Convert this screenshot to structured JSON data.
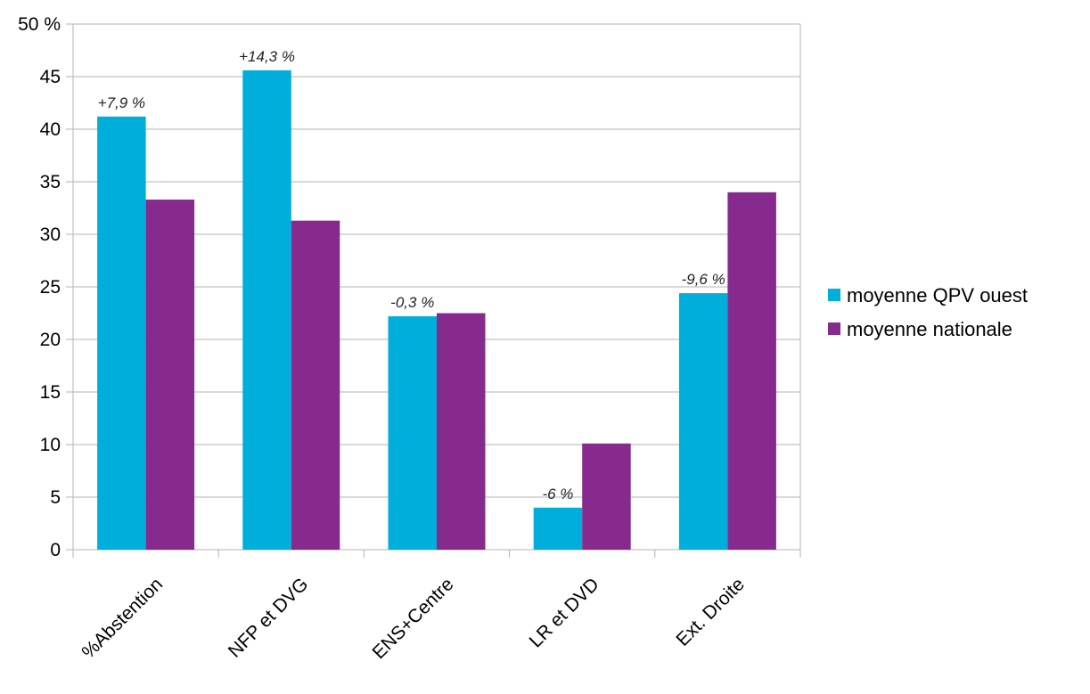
{
  "chart_data": {
    "type": "bar",
    "categories": [
      "%Abstention",
      "NFP et DVG",
      "ENS+Centre",
      "LR et DVD",
      "Ext. Droite"
    ],
    "series": [
      {
        "name": "moyenne QPV ouest",
        "color": "#00AEDB",
        "values": [
          41.2,
          45.6,
          22.2,
          4.0,
          24.4
        ]
      },
      {
        "name": "moyenne nationale",
        "color": "#862A8E",
        "values": [
          33.3,
          31.3,
          22.5,
          10.1,
          34.0
        ]
      }
    ],
    "data_labels": [
      "+7,9 %",
      "+14,3 %",
      "-0,3 %",
      "-6 %",
      "-9,6 %"
    ],
    "y_ticks": [
      "0",
      "5",
      "10",
      "15",
      "20",
      "25",
      "30",
      "35",
      "40",
      "45",
      "50 %"
    ],
    "ylim": [
      0,
      50
    ],
    "grid": true,
    "legend_position": "right",
    "title": "",
    "xlabel": "",
    "ylabel": ""
  }
}
